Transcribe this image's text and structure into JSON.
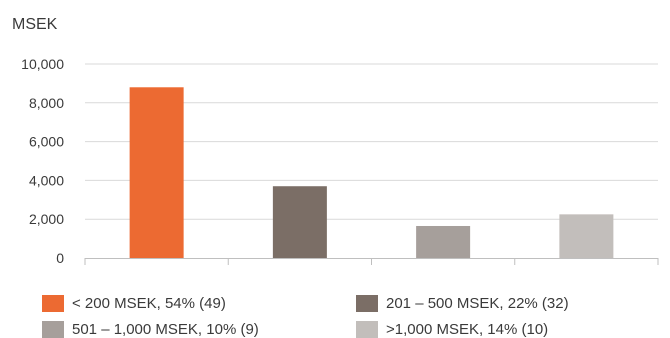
{
  "chart_data": {
    "type": "bar",
    "ylabel": "MSEK",
    "ylim": [
      0,
      10000
    ],
    "yticks": [
      0,
      2000,
      4000,
      6000,
      8000,
      10000
    ],
    "ytick_labels": [
      "0",
      "2,000",
      "4,000",
      "6,000",
      "8,000",
      "10,000"
    ],
    "grid": true,
    "categories": [
      "< 200 MSEK, 54% (49)",
      "201 – 500 MSEK, 22% (32)",
      "501 – 1,000 MSEK, 10% (9)",
      ">1,000 MSEK, 14% (10)"
    ],
    "values": [
      8800,
      3700,
      1650,
      2250
    ],
    "colors": [
      "#ec6a32",
      "#7b6e66",
      "#a69f9b",
      "#c2bebb"
    ],
    "legend_placement": "bottom"
  }
}
